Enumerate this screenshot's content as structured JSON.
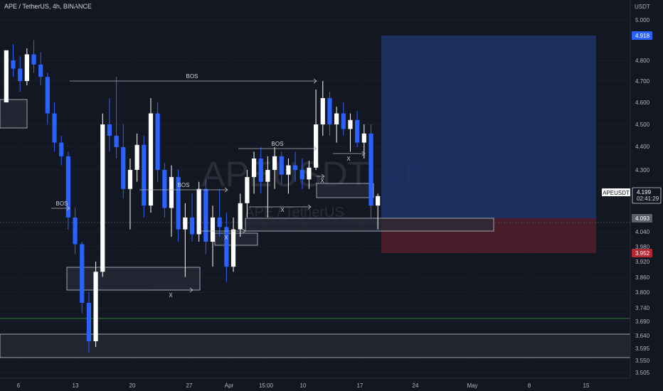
{
  "header": {
    "title": "APE / TetherUS, 4h, BINANCE"
  },
  "watermark": {
    "symbol": "APEUSDT, 4h",
    "name": "APE / TetherUS"
  },
  "colors": {
    "background": "#131722",
    "up": "#ffffff",
    "down": "#2962ff",
    "grid": "#1e222d",
    "target": "#1c3264",
    "stop": "#4a1e2a"
  },
  "chart_data": {
    "type": "candlestick",
    "title": "APE / TetherUS, 4h, BINANCE",
    "y_axis": {
      "unit_label": "USDT",
      "scale": "log",
      "ticks": [
        "5.000",
        "4.800",
        "4.700",
        "4.600",
        "4.500",
        "4.400",
        "4.300",
        "4.040",
        "3.980",
        "3.920",
        "3.860",
        "3.800",
        "3.740",
        "3.690",
        "3.640",
        "3.595",
        "3.550",
        "3.505"
      ]
    },
    "x_axis": {
      "ticks": [
        "6",
        "13",
        "20",
        "27",
        "Apr",
        "15:00",
        "10",
        "17",
        "24",
        "May",
        "8",
        "15"
      ]
    },
    "price_labels": [
      {
        "text": "4.918",
        "role": "target",
        "color": "#2962ff"
      },
      {
        "text": "4.199",
        "role": "last",
        "color": "#ffffff",
        "symbol": "APEUSDT",
        "countdown": "02:41:29"
      },
      {
        "text": "4.093",
        "role": "entry",
        "color": "#5d606b"
      },
      {
        "text": "3.952",
        "role": "stop",
        "color": "#b22833"
      }
    ],
    "annotations": [
      {
        "type": "structure",
        "label": "BOS"
      },
      {
        "type": "structure",
        "label": "BOS"
      },
      {
        "type": "structure",
        "label": "BOS"
      },
      {
        "type": "structure",
        "label": "BOS"
      },
      {
        "type": "sweep",
        "label": "X"
      },
      {
        "type": "sweep",
        "label": "X"
      },
      {
        "type": "sweep",
        "label": "X"
      },
      {
        "type": "sweep",
        "label": "X"
      },
      {
        "type": "sweep",
        "label": "X"
      }
    ],
    "zones": [
      {
        "type": "demand",
        "price_range": [
          4.45,
          4.58
        ]
      },
      {
        "type": "demand",
        "price_range": [
          3.81,
          3.89
        ]
      },
      {
        "type": "demand",
        "price_range": [
          4.0,
          4.06
        ]
      },
      {
        "type": "demand",
        "price_range": [
          4.05,
          4.09
        ]
      },
      {
        "type": "demand",
        "price_range": [
          4.2,
          4.27
        ]
      },
      {
        "type": "demand",
        "price_range": [
          3.57,
          3.64
        ]
      }
    ],
    "long_position": {
      "entry": 4.093,
      "target": 4.918,
      "stop": 3.952
    },
    "series": [
      {
        "values": [
          [
            4.6,
            4.8,
            4.78,
            4.85
          ],
          [
            4.8,
            4.88,
            4.72,
            4.76
          ],
          [
            4.76,
            4.82,
            4.65,
            4.7
          ],
          [
            4.7,
            4.86,
            4.68,
            4.83
          ],
          [
            4.83,
            4.9,
            4.74,
            4.78
          ],
          [
            4.78,
            4.84,
            4.68,
            4.72
          ],
          [
            4.72,
            4.74,
            4.5,
            4.55
          ],
          [
            4.55,
            4.6,
            4.38,
            4.42
          ],
          [
            4.42,
            4.45,
            4.32,
            4.36
          ],
          [
            4.36,
            4.38,
            4.05,
            4.1
          ],
          [
            4.1,
            4.14,
            3.95,
            3.99
          ],
          [
            3.99,
            4.0,
            3.72,
            3.76
          ],
          [
            3.76,
            3.8,
            3.58,
            3.62
          ],
          [
            3.62,
            3.92,
            3.6,
            3.88
          ],
          [
            3.88,
            4.55,
            3.86,
            4.5
          ],
          [
            4.5,
            4.62,
            4.38,
            4.45
          ],
          [
            4.45,
            4.72,
            4.35,
            4.4
          ],
          [
            4.4,
            4.5,
            4.18,
            4.22
          ],
          [
            4.22,
            4.35,
            4.05,
            4.3
          ],
          [
            4.3,
            4.46,
            4.25,
            4.41
          ],
          [
            4.41,
            4.45,
            4.1,
            4.15
          ],
          [
            4.15,
            4.62,
            4.12,
            4.55
          ],
          [
            4.55,
            4.6,
            4.25,
            4.3
          ],
          [
            4.3,
            4.33,
            4.1,
            4.14
          ],
          [
            4.14,
            4.32,
            4.02,
            4.27
          ],
          [
            4.27,
            4.3,
            4.0,
            4.05
          ],
          [
            4.05,
            4.16,
            3.86,
            4.1
          ],
          [
            4.1,
            4.2,
            4.0,
            4.03
          ],
          [
            4.03,
            4.25,
            4.0,
            4.22
          ],
          [
            4.22,
            4.26,
            3.95,
            4.0
          ],
          [
            4.0,
            4.15,
            3.9,
            4.1
          ],
          [
            4.1,
            4.22,
            4.02,
            4.06
          ],
          [
            4.06,
            4.12,
            3.84,
            3.9
          ],
          [
            3.9,
            4.1,
            3.88,
            4.05
          ],
          [
            4.05,
            4.2,
            4.02,
            4.16
          ],
          [
            4.16,
            4.3,
            4.1,
            4.27
          ],
          [
            4.27,
            4.38,
            4.2,
            4.35
          ],
          [
            4.35,
            4.4,
            4.2,
            4.25
          ],
          [
            4.25,
            4.36,
            4.1,
            4.3
          ],
          [
            4.3,
            4.4,
            4.22,
            4.36
          ],
          [
            4.36,
            4.38,
            4.24,
            4.28
          ],
          [
            4.28,
            4.35,
            4.2,
            4.32
          ],
          [
            4.32,
            4.38,
            4.25,
            4.3
          ],
          [
            4.3,
            4.35,
            4.22,
            4.26
          ],
          [
            4.26,
            4.34,
            4.22,
            4.31
          ],
          [
            4.31,
            4.66,
            4.3,
            4.5
          ],
          [
            4.5,
            4.7,
            4.45,
            4.62
          ],
          [
            4.62,
            4.65,
            4.45,
            4.5
          ],
          [
            4.5,
            4.58,
            4.42,
            4.55
          ],
          [
            4.55,
            4.6,
            4.45,
            4.48
          ],
          [
            4.48,
            4.55,
            4.38,
            4.52
          ],
          [
            4.52,
            4.56,
            4.4,
            4.42
          ],
          [
            4.42,
            4.5,
            4.35,
            4.46
          ],
          [
            4.46,
            4.5,
            4.1,
            4.15
          ],
          [
            4.15,
            4.2,
            4.05,
            4.19
          ]
        ]
      }
    ]
  }
}
